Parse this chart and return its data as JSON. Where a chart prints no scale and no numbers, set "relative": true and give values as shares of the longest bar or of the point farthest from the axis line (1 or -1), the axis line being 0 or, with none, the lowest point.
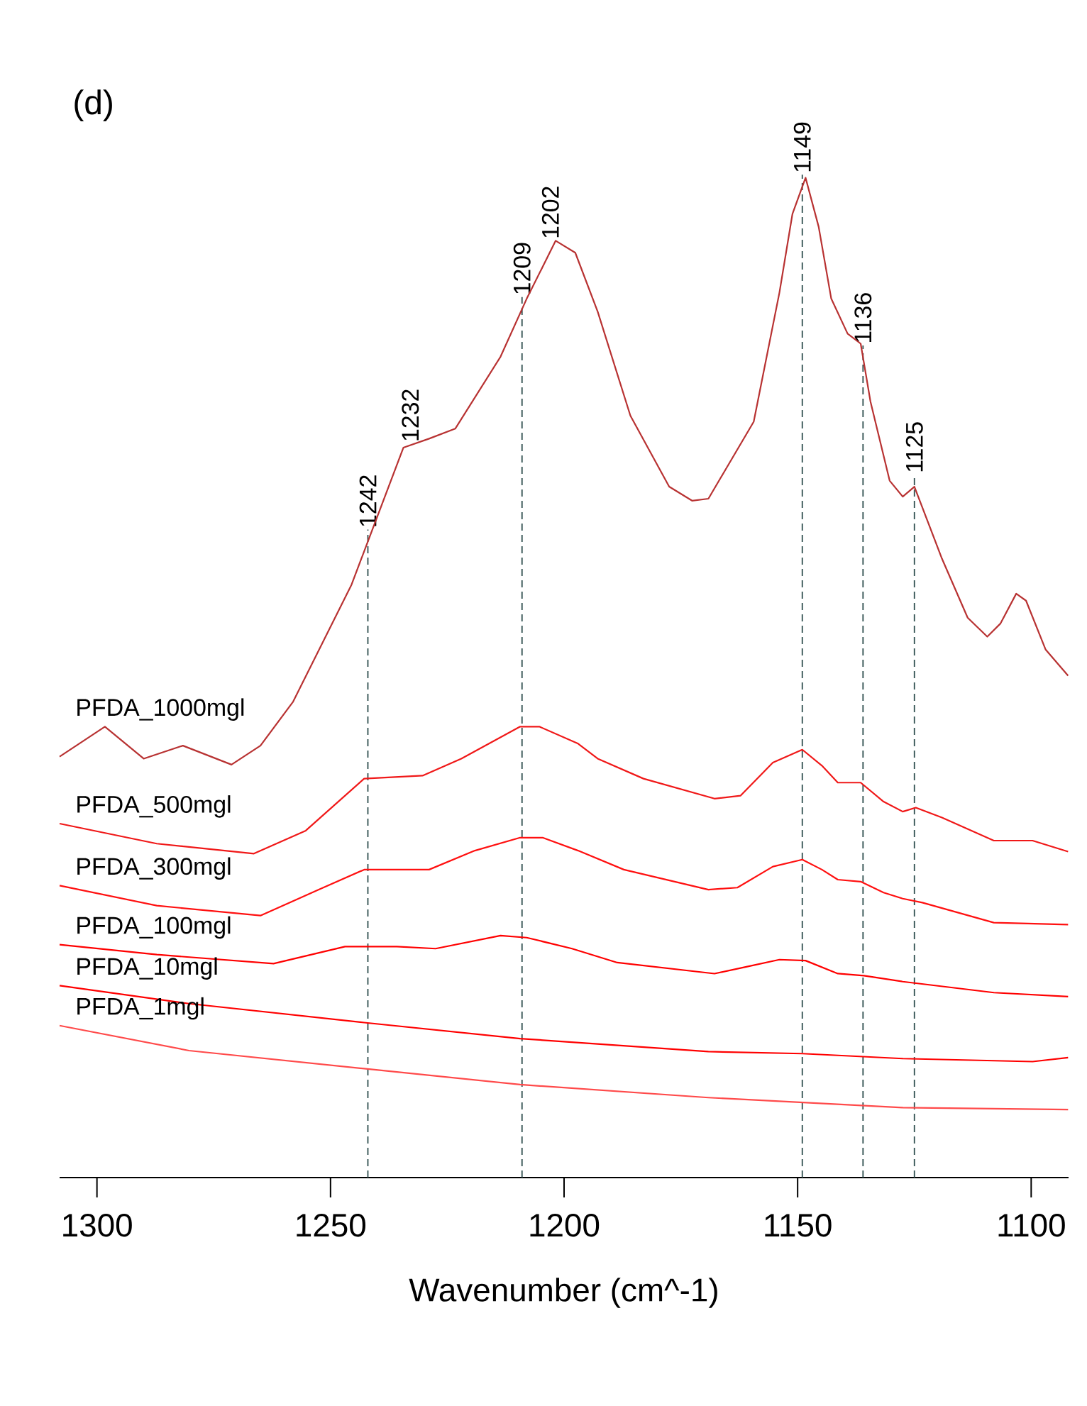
{
  "chart_data": {
    "type": "line",
    "relative": true,
    "title": "(d)",
    "xlabel": "Wavenumber (cm^-1)",
    "xlim": [
      1308,
      1092
    ],
    "xticks": [
      1300,
      1250,
      1200,
      1150,
      1100
    ],
    "series": [
      {
        "name": "PFDA_1000mgl",
        "color": "#b83232",
        "x": [
          1308.0,
          1298.3,
          1290.0,
          1281.6,
          1271.2,
          1265.0,
          1258.0,
          1245.5,
          1234.4,
          1228.9,
          1223.3,
          1213.6,
          1208.0,
          1201.8,
          1197.6,
          1192.8,
          1185.8,
          1177.5,
          1172.6,
          1169.1,
          1159.4,
          1153.9,
          1151.1,
          1148.3,
          1145.5,
          1142.8,
          1139.3,
          1136.5,
          1134.4,
          1130.3,
          1127.5,
          1125.0,
          1119.1,
          1113.6,
          1109.4,
          1106.6,
          1103.2,
          1101.1,
          1096.9,
          1092.1
        ],
        "values": [
          0.421,
          0.451,
          0.419,
          0.432,
          0.413,
          0.432,
          0.476,
          0.593,
          0.73,
          0.739,
          0.749,
          0.821,
          0.879,
          0.937,
          0.925,
          0.866,
          0.762,
          0.691,
          0.677,
          0.679,
          0.756,
          0.885,
          0.964,
          1,
          0.951,
          0.879,
          0.844,
          0.834,
          0.776,
          0.697,
          0.681,
          0.691,
          0.619,
          0.56,
          0.541,
          0.554,
          0.584,
          0.577,
          0.528,
          0.502
        ]
      },
      {
        "name": "PFDA_500mgl",
        "color": "#f01818",
        "x": [
          1308.0,
          1287.2,
          1266.4,
          1255.3,
          1242.8,
          1230.3,
          1222.0,
          1209.4,
          1205.3,
          1197.0,
          1192.8,
          1183.0,
          1167.8,
          1162.2,
          1155.3,
          1149.0,
          1144.8,
          1141.4,
          1136.5,
          1131.6,
          1127.5,
          1124.7,
          1119.1,
          1108.0,
          1099.7,
          1092.1
        ],
        "values": [
          0.354,
          0.334,
          0.324,
          0.347,
          0.399,
          0.402,
          0.419,
          0.451,
          0.451,
          0.434,
          0.419,
          0.399,
          0.379,
          0.382,
          0.415,
          0.428,
          0.412,
          0.395,
          0.395,
          0.376,
          0.366,
          0.37,
          0.36,
          0.337,
          0.337,
          0.326
        ]
      },
      {
        "name": "PFDA_300mgl",
        "color": "#ff1010",
        "x": [
          1308.0,
          1287.2,
          1265.0,
          1252.5,
          1242.8,
          1228.9,
          1219.1,
          1209.4,
          1204.6,
          1197.0,
          1187.2,
          1169.1,
          1162.9,
          1155.3,
          1149.0,
          1144.8,
          1141.4,
          1136.5,
          1131.6,
          1127.5,
          1123.3,
          1108.0,
          1092.1
        ],
        "values": [
          0.292,
          0.272,
          0.262,
          0.288,
          0.308,
          0.308,
          0.327,
          0.34,
          0.34,
          0.327,
          0.308,
          0.288,
          0.29,
          0.311,
          0.318,
          0.308,
          0.298,
          0.296,
          0.285,
          0.279,
          0.275,
          0.255,
          0.253
        ]
      },
      {
        "name": "PFDA_100mgl",
        "color": "#ff0000",
        "x": [
          1308.0,
          1287.2,
          1262.2,
          1246.9,
          1235.8,
          1227.5,
          1213.6,
          1208.0,
          1198.3,
          1188.6,
          1167.8,
          1160.8,
          1153.9,
          1148.3,
          1141.4,
          1135.8,
          1127.5,
          1108.0,
          1092.1
        ],
        "values": [
          0.233,
          0.223,
          0.214,
          0.231,
          0.231,
          0.229,
          0.242,
          0.24,
          0.229,
          0.215,
          0.204,
          0.211,
          0.218,
          0.217,
          0.204,
          0.202,
          0.196,
          0.185,
          0.181
        ]
      },
      {
        "name": "PFDA_10mgl",
        "color": "#ff0000",
        "x": [
          1308.0,
          1280.3,
          1242.8,
          1209.4,
          1169.1,
          1149.0,
          1127.5,
          1099.7,
          1092.1
        ],
        "values": [
          0.192,
          0.174,
          0.155,
          0.139,
          0.126,
          0.124,
          0.119,
          0.116,
          0.12
        ]
      },
      {
        "name": "PFDA_1mgl",
        "color": "#ff4a4a",
        "x": [
          1308.0,
          1280.3,
          1242.8,
          1209.4,
          1169.1,
          1127.5,
          1092.1
        ],
        "values": [
          0.152,
          0.127,
          0.109,
          0.093,
          0.08,
          0.07,
          0.068
        ]
      }
    ],
    "ref_lines": [
      {
        "axis": "x",
        "value": 1242,
        "label": "1242",
        "color": "#2f4f4f",
        "line_style": "dashed"
      },
      {
        "axis": "x",
        "value": 1209,
        "label": "1209",
        "color": "#2f4f4f",
        "line_style": "dashed"
      },
      {
        "axis": "x",
        "value": 1149,
        "label": "1149",
        "color": "#2f4f4f",
        "line_style": "dashed"
      },
      {
        "axis": "x",
        "value": 1136,
        "label": "1136",
        "color": "#2f4f4f",
        "line_style": "dashed"
      },
      {
        "axis": "x",
        "value": 1125,
        "label": "1125",
        "color": "#2f4f4f",
        "line_style": "dashed"
      }
    ],
    "annotations": [
      {
        "text": "1232",
        "x": 1232,
        "y": 0.734
      },
      {
        "text": "1202",
        "x": 1202,
        "y": 0.937
      }
    ]
  }
}
